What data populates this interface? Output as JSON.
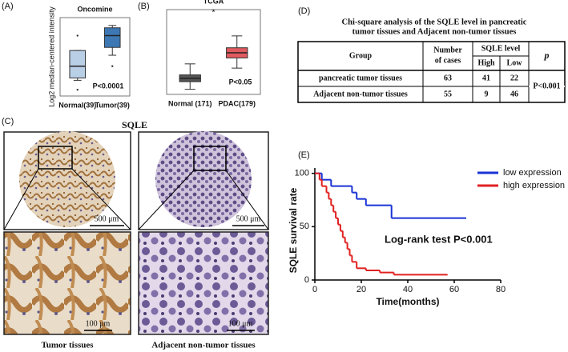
{
  "panel_labels": [
    "(A)",
    "(B)",
    "(C)",
    "(D)",
    "(E)"
  ],
  "chart_data": [
    {
      "type": "box",
      "title": "Oncomine",
      "ylabel": "Log2 median-centered intensity",
      "categories": [
        "Normal(39)",
        "Tumor(39)"
      ],
      "colors": [
        "#b9cfe6",
        "#3d78b4"
      ],
      "boxes": [
        {
          "min": 0,
          "q1": 0.15,
          "median": 0.9,
          "q3": 1.9,
          "max": 1.9,
          "outliers": [
            2.85,
            -0.6
          ]
        },
        {
          "min": 1.6,
          "q1": 2.1,
          "median": 2.85,
          "q3": 3.35,
          "max": 3.5,
          "outliers": [
            0.9
          ]
        }
      ],
      "ylim": [
        -1,
        4
      ],
      "annotation": "P<0.0001"
    },
    {
      "type": "box",
      "title": "TCGA",
      "categories": [
        "Normal (171)",
        "PDAC(179)"
      ],
      "colors": [
        "#555555",
        "#e05a5e"
      ],
      "boxes": [
        {
          "min": 0.6,
          "q1": 1.5,
          "median": 1.9,
          "q3": 2.3,
          "max": 3.6,
          "outliers": []
        },
        {
          "min": 3.1,
          "q1": 4.3,
          "median": 4.9,
          "q3": 5.5,
          "max": 6.9,
          "outliers": []
        }
      ],
      "ylim": [
        0,
        10
      ],
      "annotation": "P<0.05",
      "marker": "*"
    },
    {
      "type": "step",
      "ylabel": "SQLE survival rate",
      "xlabel": "Time(months)",
      "annotation": "Log-rank test P<0.001",
      "xlim": [
        0,
        80
      ],
      "xticks": [
        0,
        20,
        40,
        60,
        80
      ],
      "ylim": [
        0,
        105
      ],
      "yticks": [
        0,
        50,
        100
      ],
      "legend": "top-right",
      "series": [
        {
          "name": "low expression",
          "color": "#1a33d6",
          "x": [
            0,
            3,
            7,
            16,
            18,
            22,
            33,
            65
          ],
          "values": [
            100,
            94,
            88,
            82,
            76,
            70,
            58,
            58
          ]
        },
        {
          "name": "high expression",
          "color": "#e02020",
          "x": [
            0,
            2,
            3,
            5,
            6,
            7,
            8,
            9,
            10,
            11,
            12,
            13,
            14,
            15,
            16,
            18,
            22,
            28,
            34,
            57
          ],
          "values": [
            100,
            94,
            88,
            82,
            76,
            70,
            64,
            58,
            52,
            46,
            40,
            35,
            29,
            23,
            17,
            11,
            9,
            7,
            5,
            5
          ]
        }
      ]
    }
  ],
  "table": {
    "title_lines": [
      "Chi-square analysis of the SQLE level in pancreatic",
      "tumor tissues and Adjacent non-tumor tissues"
    ],
    "header": {
      "group": "Group",
      "cases": [
        "Number",
        "of cases"
      ],
      "level": "SQLE level",
      "high": "High",
      "low": "Low",
      "p": "p"
    },
    "rows": [
      [
        "pancreatic tumor tissues",
        63,
        41,
        22
      ],
      [
        "Adjacent non-tumor tissues",
        55,
        9,
        46
      ]
    ],
    "p_value": "P<0.001"
  },
  "images": {
    "title": "SQLE",
    "scale_large": "500 μm",
    "scale_small": "100 μm",
    "captions": [
      "Tumor tissues",
      "Adjacent non-tumor tissues"
    ]
  }
}
